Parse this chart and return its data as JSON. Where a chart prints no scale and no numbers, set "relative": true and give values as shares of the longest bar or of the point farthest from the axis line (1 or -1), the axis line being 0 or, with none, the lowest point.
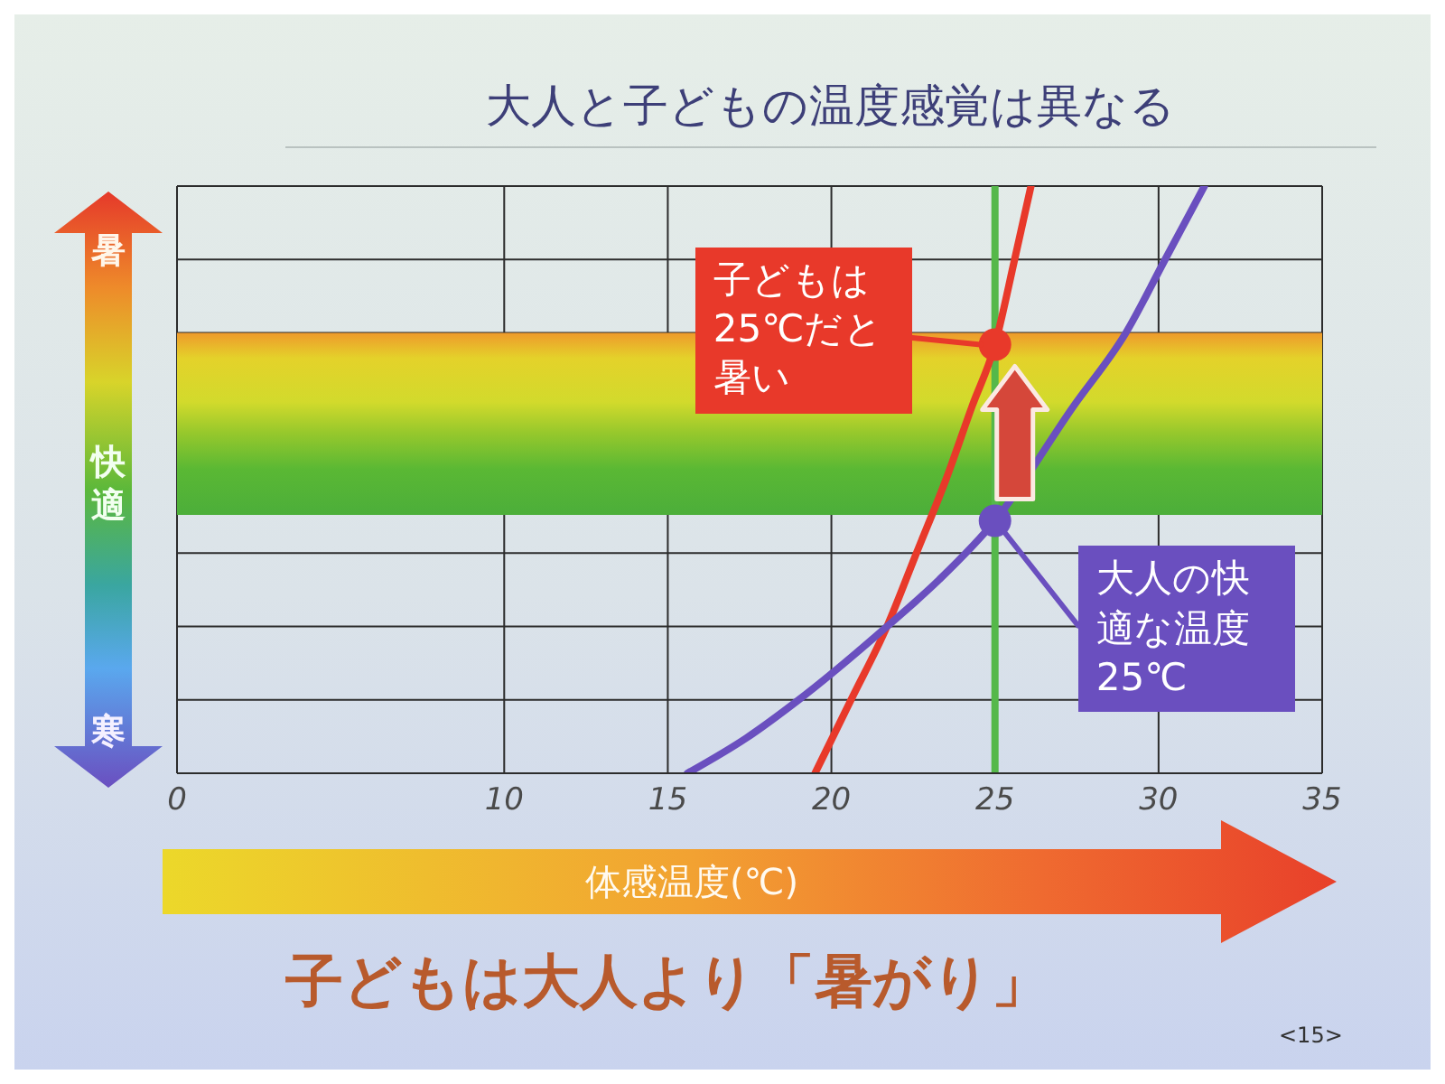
{
  "chart_data": {
    "type": "line",
    "title": "大人と子どもの温度感覚は異なる",
    "xlabel": "体感温度(℃)",
    "relative": true,
    "xlim": [
      0,
      35
    ],
    "xticks": [
      0,
      10,
      15,
      20,
      25,
      30,
      35
    ],
    "grid": true,
    "series": [
      {
        "color": "#e8392a",
        "x": [
          19.5,
          20.6,
          21.7,
          22.6,
          23.5,
          24.3,
          25.0,
          25.6,
          26.1
        ],
        "values": [
          0,
          0.125,
          0.25,
          0.375,
          0.5,
          0.625,
          0.73,
          0.875,
          1
        ]
      },
      {
        "color": "#6a4fbf",
        "x": [
          15.6,
          17.4,
          19.0,
          21.7,
          23.3,
          25.0,
          27.4,
          29.0,
          30.2,
          31.4
        ],
        "values": [
          0,
          0.06,
          0.125,
          0.25,
          0.33,
          0.43,
          0.625,
          0.75,
          0.875,
          1
        ]
      }
    ],
    "ref_lines": [
      {
        "axis": "x",
        "value": 25,
        "color": "#55b84a"
      }
    ],
    "bands": [
      {
        "axis": "y",
        "from": 0.44,
        "to": 0.75
      }
    ],
    "annotations": [
      "暑",
      "快適",
      "寒",
      {
        "text": "子どもは25℃だと暑い",
        "x": 25,
        "y": 0.73
      },
      {
        "text": "大人の快適な温度25℃",
        "x": 25,
        "y": 0.43
      },
      "子どもは大人より「暑がり」",
      "<15>"
    ]
  }
}
